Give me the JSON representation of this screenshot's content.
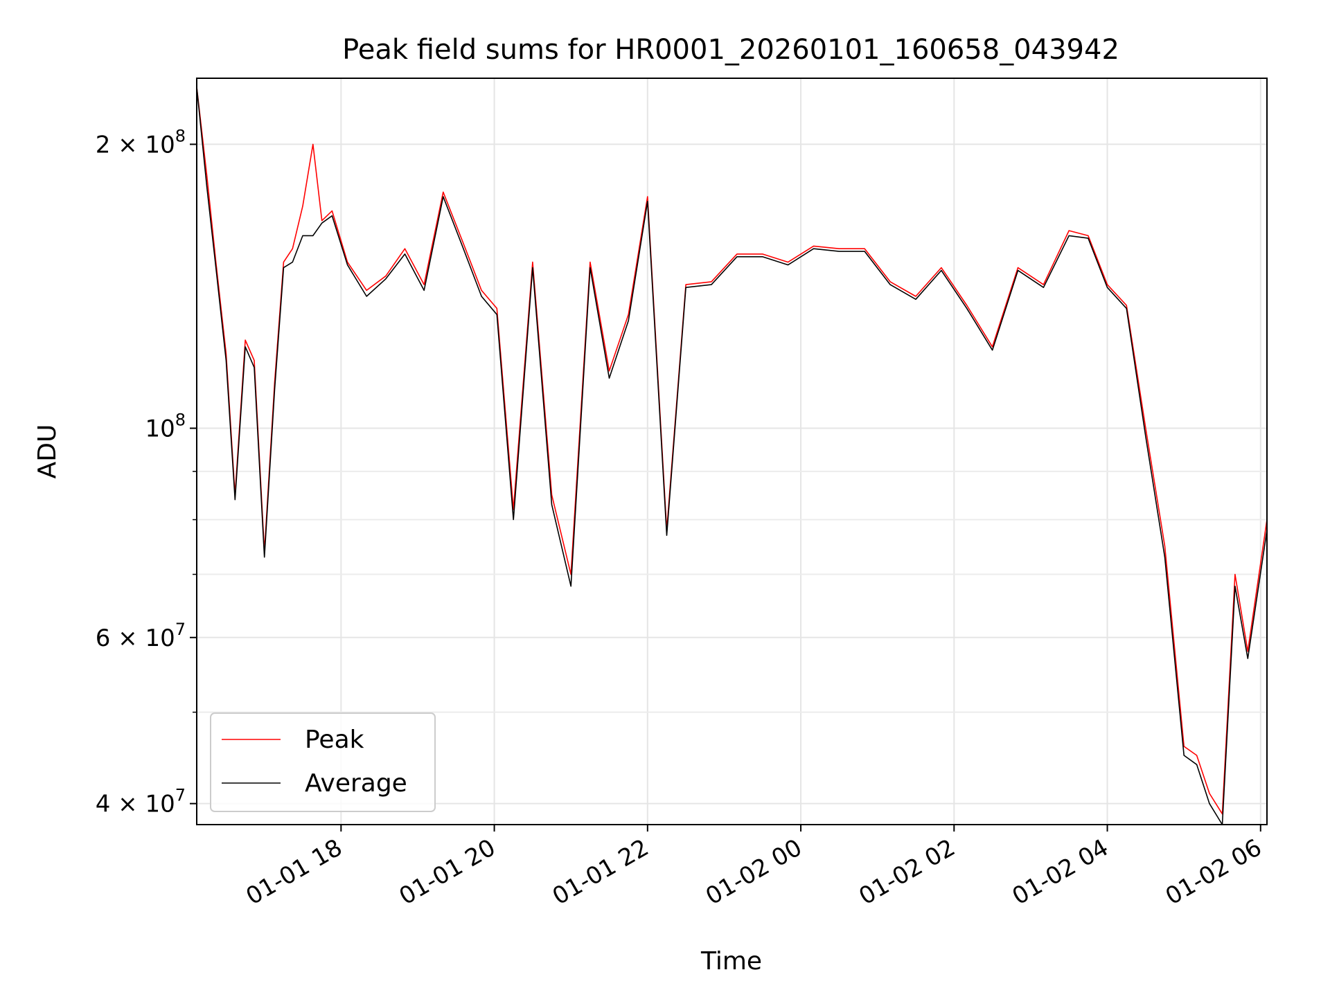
{
  "chart_data": {
    "type": "line",
    "title": "Peak field sums for HR0001_20260101_160658_043942",
    "xlabel": "Time",
    "ylabel": "ADU",
    "yscale": "log",
    "ylim": [
      38000000,
      235000000
    ],
    "xlim": [
      "2026-01-01 16:07",
      "2026-01-02 06:05"
    ],
    "grid": true,
    "legend_position": "lower-left",
    "x_ticks": [
      {
        "t": "2026-01-01 18:00",
        "label": "01-01 18"
      },
      {
        "t": "2026-01-01 20:00",
        "label": "01-01 20"
      },
      {
        "t": "2026-01-01 22:00",
        "label": "01-01 22"
      },
      {
        "t": "2026-01-02 00:00",
        "label": "01-02 00"
      },
      {
        "t": "2026-01-02 02:00",
        "label": "01-02 02"
      },
      {
        "t": "2026-01-02 04:00",
        "label": "01-02 04"
      },
      {
        "t": "2026-01-02 06:00",
        "label": "01-02 06"
      }
    ],
    "y_major_ticks": [
      {
        "v": 40000000,
        "label": "4 × 10",
        "exp": "7"
      },
      {
        "v": 60000000,
        "label": "6 × 10",
        "exp": "7"
      },
      {
        "v": 100000000,
        "label": "10",
        "exp": "8"
      },
      {
        "v": 200000000,
        "label": "2 × 10",
        "exp": "8"
      }
    ],
    "y_minor_ticks": [
      50000000,
      70000000,
      80000000,
      90000000
    ],
    "series": [
      {
        "name": "Peak",
        "color": "#ff0000",
        "x": [
          "2026-01-01 16:07",
          "2026-01-01 16:15",
          "2026-01-01 16:22",
          "2026-01-01 16:30",
          "2026-01-01 16:37",
          "2026-01-01 16:45",
          "2026-01-01 16:52",
          "2026-01-01 17:00",
          "2026-01-01 17:08",
          "2026-01-01 17:15",
          "2026-01-01 17:22",
          "2026-01-01 17:30",
          "2026-01-01 17:38",
          "2026-01-01 17:45",
          "2026-01-01 17:53",
          "2026-01-01 18:05",
          "2026-01-01 18:20",
          "2026-01-01 18:35",
          "2026-01-01 18:50",
          "2026-01-01 19:05",
          "2026-01-01 19:20",
          "2026-01-01 19:35",
          "2026-01-01 19:50",
          "2026-01-01 20:02",
          "2026-01-01 20:15",
          "2026-01-01 20:30",
          "2026-01-01 20:45",
          "2026-01-01 21:00",
          "2026-01-01 21:15",
          "2026-01-01 21:30",
          "2026-01-01 21:45",
          "2026-01-01 22:00",
          "2026-01-01 22:15",
          "2026-01-01 22:30",
          "2026-01-01 22:50",
          "2026-01-01 23:10",
          "2026-01-01 23:30",
          "2026-01-01 23:50",
          "2026-01-02 00:10",
          "2026-01-02 00:30",
          "2026-01-02 00:50",
          "2026-01-02 01:10",
          "2026-01-02 01:30",
          "2026-01-02 01:50",
          "2026-01-02 02:10",
          "2026-01-02 02:30",
          "2026-01-02 02:50",
          "2026-01-02 03:10",
          "2026-01-02 03:30",
          "2026-01-02 03:45",
          "2026-01-02 04:00",
          "2026-01-02 04:15",
          "2026-01-02 04:30",
          "2026-01-02 04:45",
          "2026-01-02 05:00",
          "2026-01-02 05:10",
          "2026-01-02 05:20",
          "2026-01-02 05:30",
          "2026-01-02 05:40",
          "2026-01-02 05:50",
          "2026-01-02 06:05"
        ],
        "values": [
          230000000,
          185000000,
          150000000,
          120000000,
          85000000,
          124000000,
          118000000,
          74000000,
          112000000,
          150000000,
          155000000,
          172000000,
          200000000,
          166000000,
          170000000,
          150000000,
          140000000,
          145000000,
          155000000,
          142000000,
          178000000,
          158000000,
          140000000,
          134000000,
          82000000,
          150000000,
          85000000,
          70000000,
          150000000,
          115000000,
          132000000,
          176000000,
          78000000,
          142000000,
          143000000,
          153000000,
          153000000,
          150000000,
          156000000,
          155000000,
          155000000,
          143000000,
          138000000,
          148000000,
          135000000,
          122000000,
          148000000,
          142000000,
          162000000,
          160000000,
          142000000,
          135000000,
          100000000,
          75000000,
          46000000,
          45000000,
          41000000,
          39000000,
          70000000,
          58000000,
          80000000
        ]
      },
      {
        "name": "Average",
        "color": "#000000",
        "x": [
          "2026-01-01 16:07",
          "2026-01-01 16:15",
          "2026-01-01 16:22",
          "2026-01-01 16:30",
          "2026-01-01 16:37",
          "2026-01-01 16:45",
          "2026-01-01 16:52",
          "2026-01-01 17:00",
          "2026-01-01 17:08",
          "2026-01-01 17:15",
          "2026-01-01 17:22",
          "2026-01-01 17:30",
          "2026-01-01 17:38",
          "2026-01-01 17:45",
          "2026-01-01 17:53",
          "2026-01-01 18:05",
          "2026-01-01 18:20",
          "2026-01-01 18:35",
          "2026-01-01 18:50",
          "2026-01-01 19:05",
          "2026-01-01 19:20",
          "2026-01-01 19:35",
          "2026-01-01 19:50",
          "2026-01-01 20:02",
          "2026-01-01 20:15",
          "2026-01-01 20:30",
          "2026-01-01 20:45",
          "2026-01-01 21:00",
          "2026-01-01 21:15",
          "2026-01-01 21:30",
          "2026-01-01 21:45",
          "2026-01-01 22:00",
          "2026-01-01 22:15",
          "2026-01-01 22:30",
          "2026-01-01 22:50",
          "2026-01-01 23:10",
          "2026-01-01 23:30",
          "2026-01-01 23:50",
          "2026-01-02 00:10",
          "2026-01-02 00:30",
          "2026-01-02 00:50",
          "2026-01-02 01:10",
          "2026-01-02 01:30",
          "2026-01-02 01:50",
          "2026-01-02 02:10",
          "2026-01-02 02:30",
          "2026-01-02 02:50",
          "2026-01-02 03:10",
          "2026-01-02 03:30",
          "2026-01-02 03:45",
          "2026-01-02 04:00",
          "2026-01-02 04:15",
          "2026-01-02 04:30",
          "2026-01-02 04:45",
          "2026-01-02 05:00",
          "2026-01-02 05:10",
          "2026-01-02 05:20",
          "2026-01-02 05:30",
          "2026-01-02 05:40",
          "2026-01-02 05:50",
          "2026-01-02 06:05"
        ],
        "values": [
          230000000,
          180000000,
          148000000,
          118000000,
          84000000,
          122000000,
          116000000,
          73000000,
          110000000,
          148000000,
          150000000,
          160000000,
          160000000,
          165000000,
          168000000,
          149000000,
          138000000,
          144000000,
          153000000,
          140000000,
          176000000,
          156000000,
          138000000,
          132000000,
          80000000,
          148000000,
          83000000,
          68000000,
          148000000,
          113000000,
          130000000,
          174000000,
          77000000,
          141000000,
          142000000,
          152000000,
          152000000,
          149000000,
          155000000,
          154000000,
          154000000,
          142000000,
          137000000,
          147000000,
          134000000,
          121000000,
          147000000,
          141000000,
          160000000,
          159000000,
          141000000,
          134000000,
          98000000,
          73000000,
          45000000,
          44000000,
          40000000,
          38000000,
          68000000,
          57000000,
          78000000
        ]
      }
    ]
  }
}
